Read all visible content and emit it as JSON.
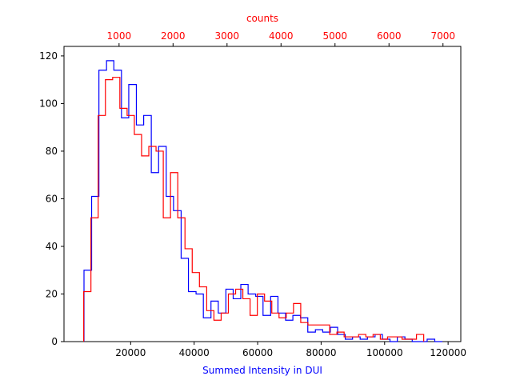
{
  "chart_data": {
    "type": "histogram",
    "xlabel": "Summed Intensity in DUI",
    "top_xlabel": "counts",
    "colors": {
      "bottom_series": "#0000ff",
      "top_series": "#ff0000",
      "frame": "#000000"
    },
    "xlim": [
      -1000,
      124000
    ],
    "top_xlim": [
      -20,
      7330
    ],
    "ylim": [
      0,
      124
    ],
    "x_ticks": [
      20000,
      40000,
      60000,
      80000,
      100000,
      120000
    ],
    "x_tick_labels": [
      "20000",
      "40000",
      "60000",
      "80000",
      "100000",
      "120000"
    ],
    "top_x_ticks": [
      1000,
      2000,
      3000,
      4000,
      5000,
      6000,
      7000
    ],
    "top_x_tick_labels": [
      "1000",
      "2000",
      "3000",
      "4000",
      "5000",
      "6000",
      "7000"
    ],
    "y_ticks": [
      0,
      20,
      40,
      60,
      80,
      100,
      120
    ],
    "y_tick_labels": [
      "0",
      "20",
      "40",
      "60",
      "80",
      "100",
      "120"
    ],
    "grid": false,
    "series": [
      {
        "axis": "bottom",
        "color": "#0000ff",
        "edges": [
          5300,
          7700,
          10000,
          12400,
          14700,
          17100,
          19400,
          21800,
          24100,
          26500,
          28800,
          31200,
          33500,
          35900,
          38200,
          40600,
          42900,
          45300,
          47600,
          50000,
          52300,
          54700,
          57000,
          59400,
          61700,
          64100,
          66400,
          68800,
          71100,
          73500,
          75800,
          78200,
          80500,
          82900,
          85200,
          87600,
          89900,
          92300,
          94600,
          97000,
          99300,
          101700,
          104000,
          106400,
          108700,
          111100,
          113400,
          115800,
          118200
        ],
        "values": [
          30,
          61,
          114,
          118,
          114,
          94,
          108,
          91,
          95,
          71,
          82,
          61,
          55,
          35,
          21,
          20,
          10,
          17,
          12,
          22,
          18,
          24,
          20,
          19,
          11,
          19,
          12,
          9,
          11,
          10,
          4,
          5,
          4,
          6,
          3,
          1,
          2,
          1,
          2,
          3,
          1,
          0,
          2,
          1,
          0,
          0,
          1,
          0
        ]
      },
      {
        "axis": "top",
        "color": "#ff0000",
        "edges": [
          345,
          479,
          613,
          747,
          881,
          1015,
          1149,
          1283,
          1417,
          1551,
          1685,
          1819,
          1953,
          2087,
          2221,
          2355,
          2489,
          2623,
          2757,
          2891,
          3025,
          3159,
          3293,
          3427,
          3561,
          3695,
          3829,
          3963,
          4097,
          4231,
          4365,
          4499,
          4633,
          4767,
          4901,
          5035,
          5169,
          5303,
          5437,
          5571,
          5705,
          5839,
          5973,
          6107,
          6241,
          6375,
          6509,
          6643
        ],
        "values": [
          21,
          52,
          95,
          110,
          111,
          98,
          95,
          87,
          78,
          82,
          80,
          52,
          71,
          52,
          39,
          29,
          23,
          13,
          9,
          12,
          20,
          22,
          18,
          11,
          20,
          17,
          12,
          10,
          12,
          16,
          8,
          7,
          7,
          7,
          3,
          4,
          2,
          2,
          3,
          2,
          3,
          1,
          2,
          2,
          1,
          1,
          3
        ]
      }
    ]
  }
}
